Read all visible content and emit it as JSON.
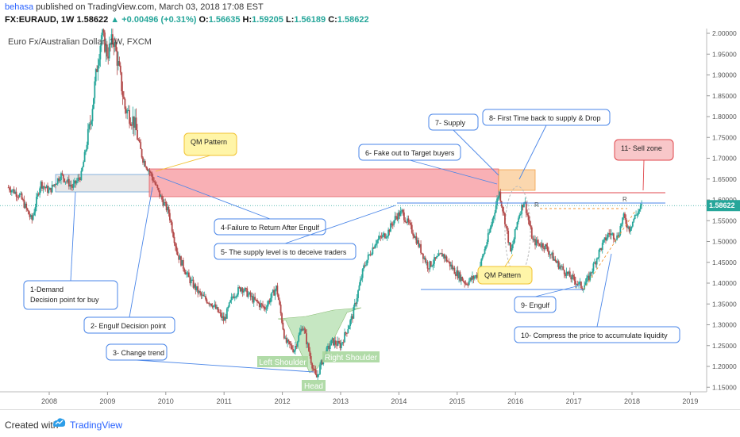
{
  "header": {
    "author": "behasa",
    "published": "published on TradingView.com, March 03, 2018 17:08 EST",
    "symbol": "FX:EURAUD, 1W",
    "last": "1.58622",
    "change": "+0.00496 (+0.31%)",
    "o_label": "O:",
    "o": "1.56635",
    "h_label": "H:",
    "h": "1.59205",
    "l_label": "L:",
    "l": "1.56189",
    "c_label": "C:",
    "c": "1.58622"
  },
  "chart_data": {
    "type": "candlestick",
    "title": "Euro Fx/Australian Dollar, 1W, FXCM",
    "x_ticks": [
      "2008",
      "2009",
      "2010",
      "2011",
      "2012",
      "2013",
      "2014",
      "2015",
      "2016",
      "2017",
      "2018",
      "2019"
    ],
    "y_ticks": [
      "2.00000",
      "1.95000",
      "1.90000",
      "1.85000",
      "1.80000",
      "1.75000",
      "1.70000",
      "1.65000",
      "1.60000",
      "1.55000",
      "1.50000",
      "1.45000",
      "1.40000",
      "1.35000",
      "1.30000",
      "1.25000",
      "1.20000",
      "1.15000"
    ],
    "ylim": [
      1.13,
      2.005
    ],
    "last_price": "1.58622",
    "price_path": [
      [
        2007.3,
        1.63
      ],
      [
        2007.5,
        1.61
      ],
      [
        2007.7,
        1.55
      ],
      [
        2007.85,
        1.64
      ],
      [
        2008.0,
        1.62
      ],
      [
        2008.2,
        1.66
      ],
      [
        2008.4,
        1.63
      ],
      [
        2008.55,
        1.66
      ],
      [
        2008.7,
        1.78
      ],
      [
        2008.82,
        1.92
      ],
      [
        2008.9,
        2.0
      ],
      [
        2009.0,
        1.95
      ],
      [
        2009.1,
        1.99
      ],
      [
        2009.2,
        1.91
      ],
      [
        2009.3,
        1.82
      ],
      [
        2009.45,
        1.79
      ],
      [
        2009.6,
        1.7
      ],
      [
        2009.75,
        1.66
      ],
      [
        2009.9,
        1.61
      ],
      [
        2010.05,
        1.57
      ],
      [
        2010.2,
        1.47
      ],
      [
        2010.4,
        1.41
      ],
      [
        2010.6,
        1.37
      ],
      [
        2010.8,
        1.35
      ],
      [
        2011.0,
        1.31
      ],
      [
        2011.15,
        1.37
      ],
      [
        2011.3,
        1.39
      ],
      [
        2011.5,
        1.36
      ],
      [
        2011.7,
        1.34
      ],
      [
        2011.9,
        1.39
      ],
      [
        2012.05,
        1.26
      ],
      [
        2012.2,
        1.24
      ],
      [
        2012.35,
        1.3
      ],
      [
        2012.5,
        1.21
      ],
      [
        2012.58,
        1.17
      ],
      [
        2012.7,
        1.22
      ],
      [
        2012.85,
        1.26
      ],
      [
        2013.0,
        1.25
      ],
      [
        2013.2,
        1.32
      ],
      [
        2013.4,
        1.44
      ],
      [
        2013.6,
        1.5
      ],
      [
        2013.8,
        1.52
      ],
      [
        2013.95,
        1.56
      ],
      [
        2014.05,
        1.57
      ],
      [
        2014.25,
        1.52
      ],
      [
        2014.5,
        1.44
      ],
      [
        2014.75,
        1.47
      ],
      [
        2014.95,
        1.43
      ],
      [
        2015.15,
        1.4
      ],
      [
        2015.35,
        1.42
      ],
      [
        2015.55,
        1.52
      ],
      [
        2015.72,
        1.62
      ],
      [
        2015.82,
        1.55
      ],
      [
        2015.92,
        1.47
      ],
      [
        2016.05,
        1.56
      ],
      [
        2016.15,
        1.6
      ],
      [
        2016.3,
        1.5
      ],
      [
        2016.5,
        1.49
      ],
      [
        2016.7,
        1.45
      ],
      [
        2016.9,
        1.42
      ],
      [
        2017.15,
        1.39
      ],
      [
        2017.25,
        1.41
      ],
      [
        2017.45,
        1.48
      ],
      [
        2017.6,
        1.52
      ],
      [
        2017.75,
        1.51
      ],
      [
        2017.85,
        1.56
      ],
      [
        2017.95,
        1.53
      ],
      [
        2018.05,
        1.56
      ],
      [
        2018.17,
        1.5862
      ]
    ],
    "neckline": 1.569,
    "annotations": {
      "qm1": "QM Pattern",
      "qm2": "QM Pattern",
      "a1": "1-Demand\n    Decision point  for buy",
      "a2": "2- Engulf Decision point",
      "a3": "3- Change trend",
      "a4": "4-Failure to Return After Engulf",
      "a5": "5- The supply level is to deceive traders",
      "a6": "6- Fake out to Target buyers",
      "a7": "7- Supply",
      "a8": "8- First Time back to supply & Drop",
      "a9": "9- Engulf",
      "a10": "10- Compress the price to accumulate liquidity",
      "a11": "11- Sell zone",
      "left_shoulder": "Left Shoulder",
      "head": "Head",
      "right_shoulder": "Right Shoulder",
      "r1": "R",
      "r2": "R"
    }
  },
  "footer": {
    "created_with": "Created with",
    "brand": "TradingView"
  },
  "colors": {
    "up": "#26a69a",
    "down": "#b34a4a",
    "supply_zone": "#f8a3a9",
    "orange_zone": "#fbd3a6",
    "demand_zone": "#e6e6e6",
    "callout_border": "#4a86e8",
    "qm_fill": "#fff5a8",
    "hs_fill": "#b9e2b3"
  }
}
